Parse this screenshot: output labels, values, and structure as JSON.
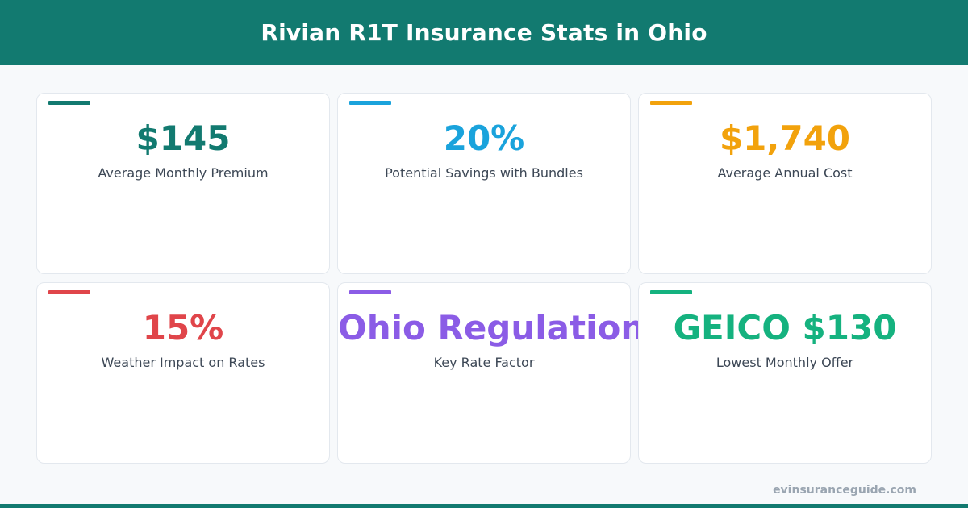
{
  "header": {
    "title": "Rivian R1T Insurance Stats in Ohio"
  },
  "stats": [
    {
      "value": "$145",
      "label": "Average Monthly Premium",
      "color": "#127a70"
    },
    {
      "value": "20%",
      "label": "Potential Savings with Bundles",
      "color": "#1aa3dc"
    },
    {
      "value": "$1,740",
      "label": "Average Annual Cost",
      "color": "#f2a20c"
    },
    {
      "value": "15%",
      "label": "Weather Impact on Rates",
      "color": "#e0454a"
    },
    {
      "value": "Ohio Regulations",
      "label": "Key Rate Factor",
      "color": "#8b5ce6"
    },
    {
      "value": "GEICO $130",
      "label": "Lowest Monthly Offer",
      "color": "#15b27f"
    }
  ],
  "footer": {
    "site": "evinsuranceguide.com"
  },
  "colors": {
    "header_bg": "#127a70",
    "page_bg": "#f7f9fb"
  }
}
